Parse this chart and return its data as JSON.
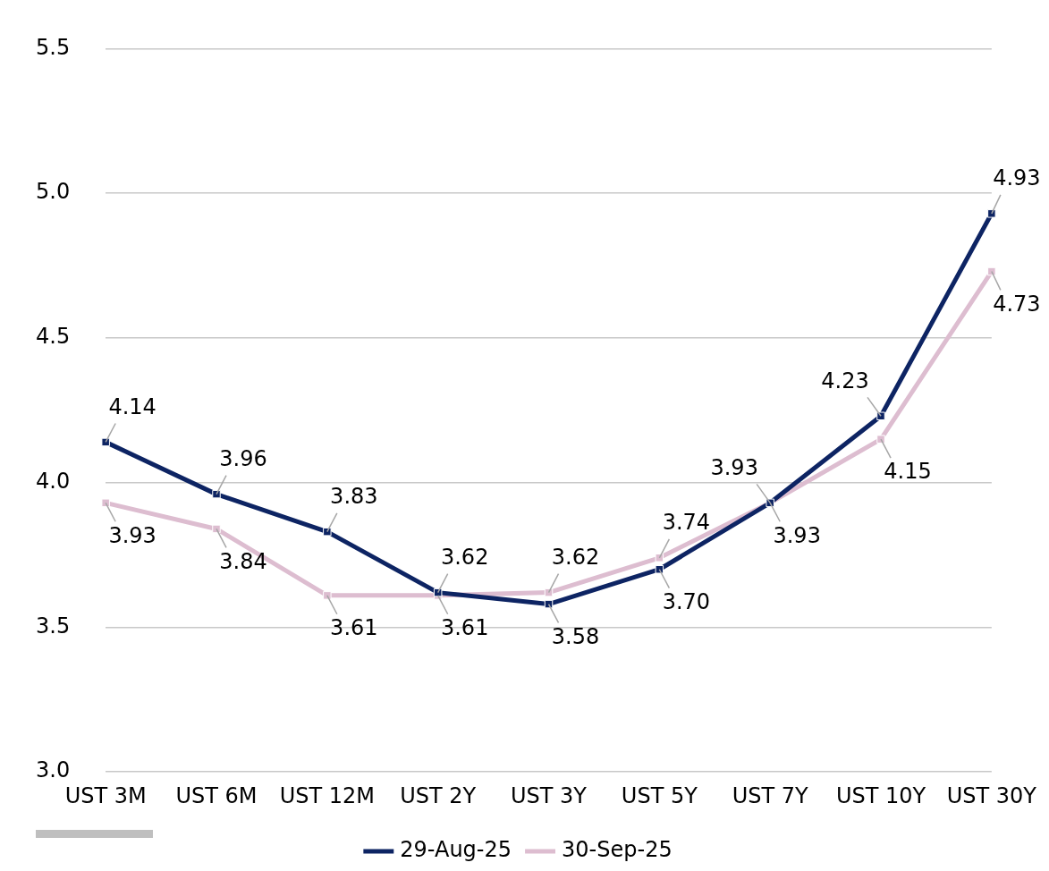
{
  "chart_data": {
    "type": "line",
    "categories": [
      "UST 3M",
      "UST 6M",
      "UST 12M",
      "UST 2Y",
      "UST 3Y",
      "UST 5Y",
      "UST 7Y",
      "UST 10Y",
      "UST 30Y"
    ],
    "series": [
      {
        "name": "29-Aug-25",
        "color": "#0d2463",
        "values": [
          4.14,
          3.96,
          3.83,
          3.62,
          3.58,
          3.7,
          3.93,
          4.23,
          4.93
        ],
        "value_labels": [
          "4.14",
          "3.96",
          "3.83",
          "3.62",
          "3.58",
          "3.70",
          "3.93",
          "4.23",
          "4.93"
        ]
      },
      {
        "name": "30-Sep-25",
        "color": "#ddbdd0",
        "values": [
          3.93,
          3.84,
          3.61,
          3.61,
          3.62,
          3.74,
          3.93,
          4.15,
          4.73
        ],
        "value_labels": [
          "3.93",
          "3.84",
          "3.61",
          "3.61",
          "3.62",
          "3.74",
          "3.93",
          "4.15",
          "4.73"
        ]
      }
    ],
    "ylim": [
      3.0,
      5.5
    ],
    "yticks": [
      {
        "value": 3.0,
        "label": "3.0"
      },
      {
        "value": 3.5,
        "label": "3.5"
      },
      {
        "value": 4.0,
        "label": "4.0"
      },
      {
        "value": 4.5,
        "label": "4.5"
      },
      {
        "value": 5.0,
        "label": "5.0"
      },
      {
        "value": 5.5,
        "label": "5.5"
      }
    ],
    "grid": "y",
    "legend": "bottom",
    "marker": "square",
    "line_style": "solid"
  }
}
